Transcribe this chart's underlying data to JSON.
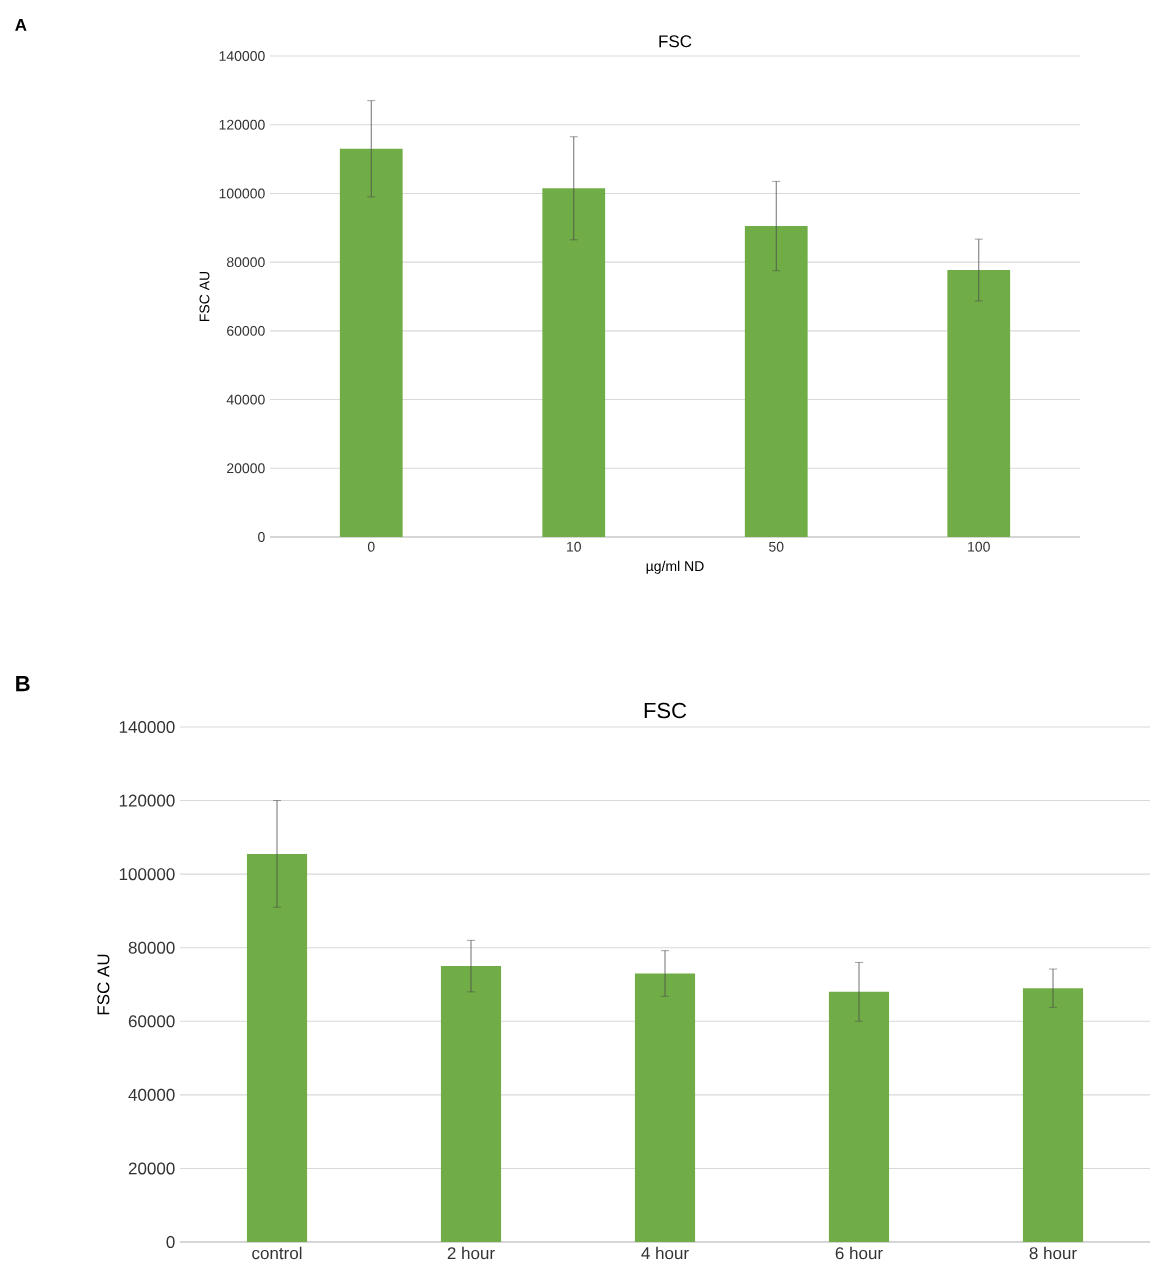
{
  "chart_data": [
    {
      "type": "bar",
      "title": "FSC",
      "xlabel": "µg/ml ND",
      "ylabel": "FSC AU",
      "annotations": [
        "A"
      ],
      "categories": [
        "0",
        "10",
        "50",
        "100"
      ],
      "values": [
        113000,
        101500,
        90500,
        77700
      ],
      "errors": [
        14000,
        15000,
        13000,
        9000
      ],
      "color": "#70ad47",
      "ylim": [
        0,
        140000
      ],
      "yticks": [
        0,
        20000,
        40000,
        60000,
        80000,
        100000,
        120000,
        140000
      ],
      "grid": "y"
    },
    {
      "type": "bar",
      "title": "FSC",
      "ylabel": "FSC AU",
      "annotations": [
        "B"
      ],
      "categories": [
        "control",
        "2 hour",
        "4 hour",
        "6 hour",
        "8 hour"
      ],
      "values": [
        105500,
        75000,
        73000,
        68000,
        69000
      ],
      "errors": [
        14500,
        7000,
        6200,
        8000,
        5200
      ],
      "color": "#70ad47",
      "ylim": [
        0,
        140000
      ],
      "yticks": [
        0,
        20000,
        40000,
        60000,
        80000,
        100000,
        120000,
        140000
      ],
      "grid": "y"
    }
  ]
}
